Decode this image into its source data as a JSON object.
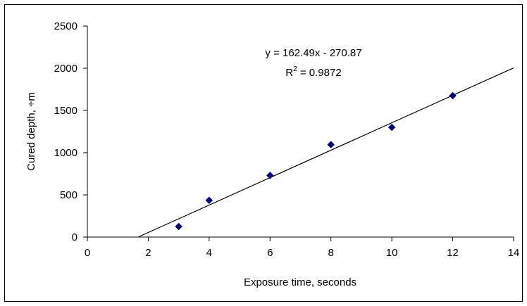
{
  "chart_data": {
    "type": "scatter",
    "title": "",
    "xlabel": "Exposure time, seconds",
    "ylabel": "Cured depth, ÷m",
    "xlim": [
      0,
      14
    ],
    "ylim": [
      0,
      2500
    ],
    "x_ticks": [
      0,
      2,
      4,
      6,
      8,
      10,
      12,
      14
    ],
    "y_ticks": [
      0,
      500,
      1000,
      1500,
      2000,
      2500
    ],
    "grid": false,
    "legend": "none",
    "series": [
      {
        "marker": "diamond",
        "color": "#000080",
        "points": [
          {
            "x": 3,
            "y": 125
          },
          {
            "x": 4,
            "y": 435
          },
          {
            "x": 6,
            "y": 730
          },
          {
            "x": 8,
            "y": 1095
          },
          {
            "x": 10,
            "y": 1300
          },
          {
            "x": 12,
            "y": 1675
          }
        ]
      }
    ],
    "trendline": {
      "type": "linear",
      "slope": 162.49,
      "intercept": -270.87,
      "x_end": 14,
      "color": "#000000",
      "equation": "y = 162.49x - 270.87",
      "r2_prefix": "R",
      "r2_sup": "2",
      "r2_suffix": " = 0.9872"
    }
  }
}
